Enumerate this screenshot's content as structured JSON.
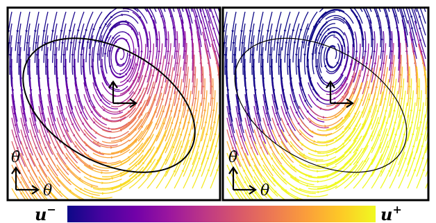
{
  "panels": [
    {
      "id": "left",
      "axis_y_label": "θ̇",
      "axis_x_label": "θ"
    },
    {
      "id": "right",
      "axis_y_label": "θ̇",
      "axis_x_label": "θ"
    }
  ],
  "colorbar": {
    "min_label": "u",
    "min_sup": "−",
    "max_label": "u",
    "max_sup": "+",
    "colors": [
      "#0d0887",
      "#46039f",
      "#7201a8",
      "#9c179e",
      "#bd3786",
      "#d8576b",
      "#ed7953",
      "#fb9f3a",
      "#fdca26",
      "#f0f921"
    ]
  }
}
